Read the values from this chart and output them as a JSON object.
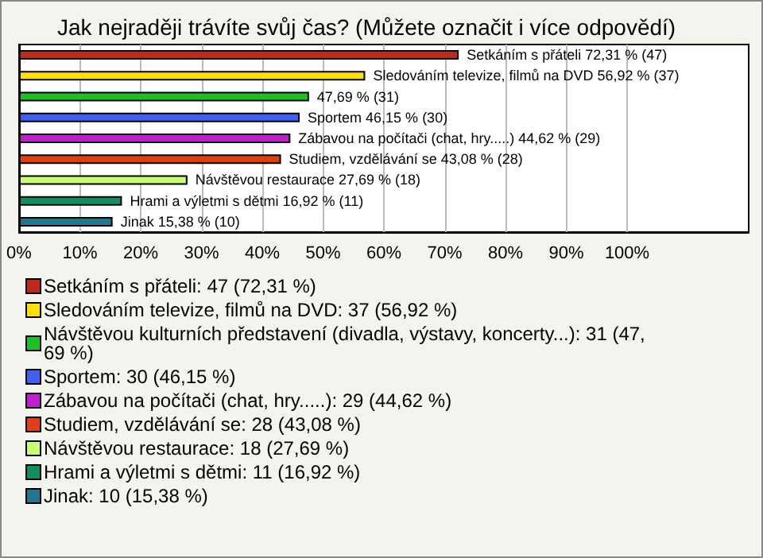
{
  "chart_data": {
    "type": "bar",
    "orientation": "horizontal",
    "stacked": true,
    "title": "Jak nejraději trávíte svůj čas? (Můžete označit i více odpovědí)",
    "categories": [
      null,
      null,
      null,
      null,
      null,
      null,
      null,
      null,
      null
    ],
    "series": [
      {
        "name": "Setkáním s přáteli: 47 (72,31 %)",
        "color": "#c0281c",
        "values": [
          72.31,
          null,
          null,
          null,
          null,
          null,
          null,
          null,
          null
        ],
        "value_labels": [
          "Setkáním s přáteli 72,31 % (47)",
          null,
          null,
          null,
          null,
          null,
          null,
          null,
          null
        ]
      },
      {
        "name": "Sledováním televize, filmů na DVD: 37 (56,92 %)",
        "color": "#ffe000",
        "values": [
          null,
          56.92,
          null,
          null,
          null,
          null,
          null,
          null,
          null
        ],
        "value_labels": [
          null,
          "Sledováním televize, filmů na DVD 56,92 % (37)",
          null,
          null,
          null,
          null,
          null,
          null,
          null
        ]
      },
      {
        "name": "Návštěvou kulturních představení (divadla, výstavy, koncerty...): 31 (47,69 %)",
        "color": "#20c020",
        "values": [
          null,
          null,
          47.69,
          null,
          null,
          null,
          null,
          null,
          null
        ],
        "value_labels": [
          null,
          null,
          "47,69 % (31)",
          null,
          null,
          null,
          null,
          null,
          null
        ]
      },
      {
        "name": "Sportem: 30 (46,15 %)",
        "color": "#4060f0",
        "values": [
          null,
          null,
          null,
          46.15,
          null,
          null,
          null,
          null,
          null
        ],
        "value_labels": [
          null,
          null,
          null,
          "Sportem 46,15 % (30)",
          null,
          null,
          null,
          null,
          null
        ]
      },
      {
        "name": "Zábavou na počítači (chat, hry.....): 29 (44,62 %)",
        "color": "#c020d0",
        "values": [
          null,
          null,
          null,
          null,
          44.62,
          null,
          null,
          null,
          null
        ],
        "value_labels": [
          null,
          null,
          null,
          null,
          "Zábavou na počítači (chat, hry.....) 44,62 % (29)",
          null,
          null,
          null,
          null
        ]
      },
      {
        "name": "Studiem, vzdělávání se: 28 (43,08 %)",
        "color": "#e04010",
        "values": [
          null,
          null,
          null,
          null,
          null,
          43.08,
          null,
          null,
          null
        ],
        "value_labels": [
          null,
          null,
          null,
          null,
          null,
          "Studiem, vzdělávání se 43,08 % (28)",
          null,
          null,
          null
        ]
      },
      {
        "name": "Návštěvou restaurace: 18 (27,69 %)",
        "color": "#c8ff70",
        "values": [
          null,
          null,
          null,
          null,
          null,
          null,
          27.69,
          null,
          null
        ],
        "value_labels": [
          null,
          null,
          null,
          null,
          null,
          null,
          "Návštěvou restaurace 27,69 % (18)",
          null,
          null
        ]
      },
      {
        "name": "Hrami a výletmi s dětmi: 11 (16,92 %)",
        "color": "#109060",
        "values": [
          null,
          null,
          null,
          null,
          null,
          null,
          null,
          16.92,
          null
        ],
        "value_labels": [
          null,
          null,
          null,
          null,
          null,
          null,
          null,
          "Hrami a výletmi s dětmi 16,92 % (11)",
          null
        ]
      },
      {
        "name": "Jinak: 10 (15,38 %)",
        "color": "#207890",
        "values": [
          null,
          null,
          null,
          null,
          null,
          null,
          null,
          null,
          15.38
        ],
        "value_labels": [
          null,
          null,
          null,
          null,
          null,
          null,
          null,
          null,
          "Jinak 15,38 % (10)"
        ]
      }
    ],
    "xlim": [
      0,
      120
    ],
    "xticks": [
      {
        "value": 0,
        "label": "0%"
      },
      {
        "value": 10,
        "label": "10%"
      },
      {
        "value": 20,
        "label": "20%"
      },
      {
        "value": 30,
        "label": "30%"
      },
      {
        "value": 40,
        "label": "40%"
      },
      {
        "value": 50,
        "label": "50%"
      },
      {
        "value": 60,
        "label": "60%"
      },
      {
        "value": 70,
        "label": "70%"
      },
      {
        "value": 80,
        "label": "80%"
      },
      {
        "value": 90,
        "label": "90%"
      },
      {
        "value": 100,
        "label": "100%"
      }
    ],
    "grid": "x",
    "legend": "bottom",
    "tick_labels": "x"
  }
}
